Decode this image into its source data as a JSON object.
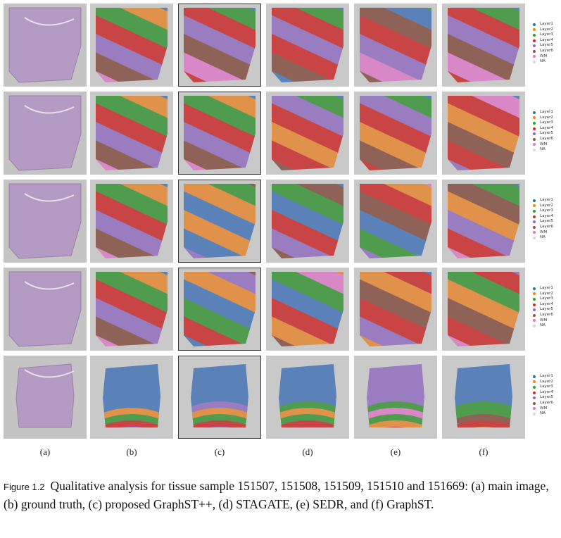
{
  "legend": {
    "items": [
      {
        "label": "Layer1",
        "color": "#1f77b4"
      },
      {
        "label": "Layer2",
        "color": "#ff7f0e"
      },
      {
        "label": "Layer3",
        "color": "#2ca02c"
      },
      {
        "label": "Layer4",
        "color": "#d62728"
      },
      {
        "label": "Layer5",
        "color": "#9467bd"
      },
      {
        "label": "Layer6",
        "color": "#8c564b"
      },
      {
        "label": "WM",
        "color": "#e377c2"
      },
      {
        "label": "NA",
        "color": "#d9d9d9"
      }
    ]
  },
  "subfigure_labels": [
    "(a)",
    "(b)",
    "(c)",
    "(d)",
    "(e)",
    "(f)"
  ],
  "caption": {
    "figure_label": "Figure 1.2",
    "text": "Qualitative analysis for tissue sample 151507, 151508, 151509, 151510 and 151669: (a) main image, (b) ground truth, (c) proposed GraphST++, (d) STAGATE, (e) SEDR, and (f) GraphST."
  }
}
